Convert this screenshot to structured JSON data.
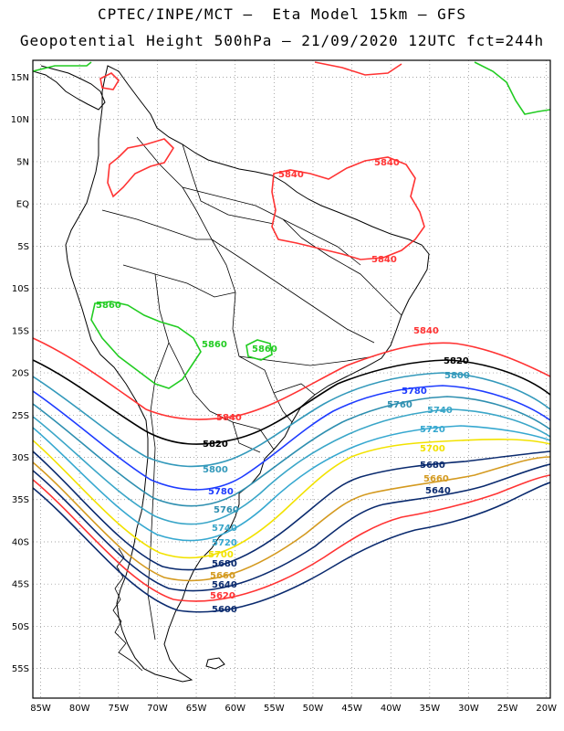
{
  "title": {
    "line1": "CPTEC/INPE/MCT –  Eta Model 15km – GFS",
    "line2": "Geopotential Height 500hPa – 21/09/2020 12UTC fct=244h"
  },
  "map": {
    "lon_range": [
      -86,
      -19.5
    ],
    "lat_range": [
      -58.5,
      17
    ],
    "grid": "dotted",
    "lat_ticks": [
      "15N",
      "10N",
      "5N",
      "EQ",
      "5S",
      "10S",
      "15S",
      "20S",
      "25S",
      "30S",
      "35S",
      "40S",
      "45S",
      "50S",
      "55S"
    ],
    "lon_ticks": [
      "85W",
      "80W",
      "75W",
      "70W",
      "65W",
      "60W",
      "55W",
      "50W",
      "45W",
      "40W",
      "35W",
      "30W",
      "25W",
      "20W"
    ]
  },
  "contour_labels": [
    {
      "text": "5840",
      "color": "#ff3333"
    },
    {
      "text": "5840",
      "color": "#ff3333"
    },
    {
      "text": "5840",
      "color": "#ff3333"
    },
    {
      "text": "5840",
      "color": "#ff3333"
    },
    {
      "text": "5840",
      "color": "#ff3333"
    },
    {
      "text": "5820",
      "color": "#000000"
    },
    {
      "text": "5820",
      "color": "#000000"
    },
    {
      "text": "5800",
      "color": "#3399bb"
    },
    {
      "text": "5800",
      "color": "#3399bb"
    },
    {
      "text": "5780",
      "color": "#1e3cff"
    },
    {
      "text": "5780",
      "color": "#1e3cff"
    },
    {
      "text": "5760",
      "color": "#2e8fb0"
    },
    {
      "text": "5760",
      "color": "#2e8fb0"
    },
    {
      "text": "5740",
      "color": "#3aa6c8"
    },
    {
      "text": "5740",
      "color": "#3aa6c8"
    },
    {
      "text": "5720",
      "color": "#36a8d0"
    },
    {
      "text": "5720",
      "color": "#36a8d0"
    },
    {
      "text": "5700",
      "color": "#f2e200"
    },
    {
      "text": "5700",
      "color": "#f2e200"
    },
    {
      "text": "5680",
      "color": "#0a2a6e"
    },
    {
      "text": "5680",
      "color": "#0a2a6e"
    },
    {
      "text": "5660",
      "color": "#d49a20"
    },
    {
      "text": "5660",
      "color": "#d49a20"
    },
    {
      "text": "5640",
      "color": "#0a2a6e"
    },
    {
      "text": "5640",
      "color": "#0a2a6e"
    },
    {
      "text": "5620",
      "color": "#ff3333"
    },
    {
      "text": "5600",
      "color": "#0a2a6e"
    },
    {
      "text": "5860",
      "color": "#22cc22"
    },
    {
      "text": "5860",
      "color": "#22cc22"
    },
    {
      "text": "5860",
      "color": "#22cc22"
    }
  ]
}
